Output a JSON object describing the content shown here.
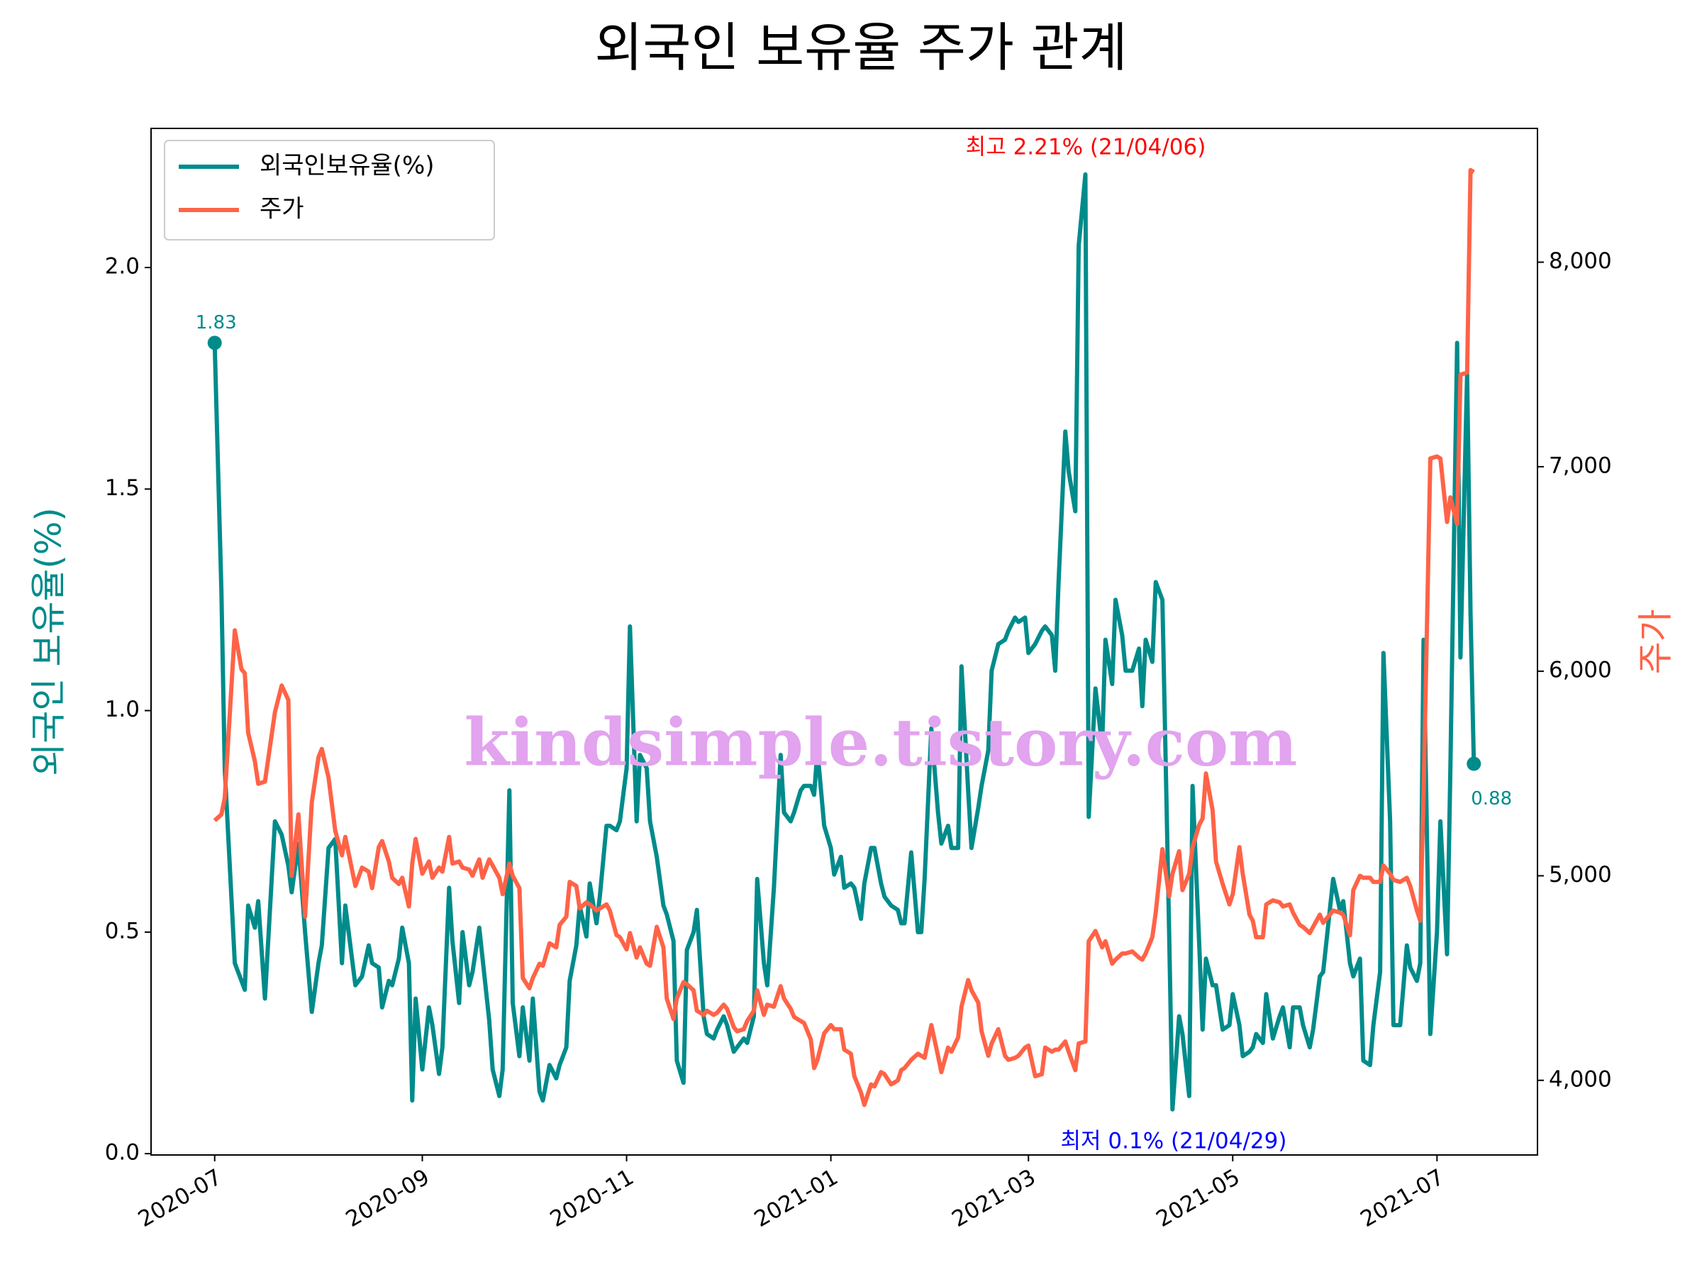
{
  "chart_data": {
    "type": "line",
    "title": "외국인 보유율 주가 관계",
    "ylabel": "외국인 보유율(%)",
    "y2label": "주가",
    "watermark": "kindsimple.tistory.com",
    "legend": "upper left",
    "annotations": [
      {
        "text": "최고 2.21% (21/04/06)",
        "color": "#ff0000"
      },
      {
        "text": "최저 0.1% (21/04/29)",
        "color": "#0000ff"
      }
    ],
    "xlim": [
      "2020-06-12",
      "2021-07-31"
    ],
    "xticks": [
      {
        "value": "2020-07-01",
        "label": "2020-07"
      },
      {
        "value": "2020-09-01",
        "label": "2020-09"
      },
      {
        "value": "2020-11-01",
        "label": "2020-11"
      },
      {
        "value": "2021-01-01",
        "label": "2021-01"
      },
      {
        "value": "2021-03-01",
        "label": "2021-03"
      },
      {
        "value": "2021-05-01",
        "label": "2021-05"
      },
      {
        "value": "2021-07-01",
        "label": "2021-07"
      }
    ],
    "ylim": [
      -0.003,
      2.314
    ],
    "yticks": [
      {
        "value": 0,
        "label": "0.0"
      },
      0.5,
      {
        "value": 1,
        "label": "1.0"
      },
      1.5,
      {
        "value": 2,
        "label": "2.0"
      }
    ],
    "y2lim": [
      3635,
      8654
    ],
    "y2ticks": [
      {
        "value": 4000,
        "label": "4,000"
      },
      {
        "value": 5000,
        "label": "5,000"
      },
      {
        "value": 6000,
        "label": "6,000"
      },
      {
        "value": 7000,
        "label": "7,000"
      },
      {
        "value": 8000,
        "label": "8,000"
      }
    ],
    "x": [
      "2020-07-01",
      "2020-07-03",
      "2020-07-04",
      "2020-07-07",
      "2020-07-09",
      "2020-07-10",
      "2020-07-11",
      "2020-07-13",
      "2020-07-14",
      "2020-07-16",
      "2020-07-19",
      "2020-07-21",
      "2020-07-23",
      "2020-07-24",
      "2020-07-26",
      "2020-07-28",
      "2020-07-30",
      "2020-08-01",
      "2020-08-02",
      "2020-08-04",
      "2020-08-06",
      "2020-08-08",
      "2020-08-09",
      "2020-08-12",
      "2020-08-14",
      "2020-08-16",
      "2020-08-17",
      "2020-08-19",
      "2020-08-20",
      "2020-08-22",
      "2020-08-23",
      "2020-08-25",
      "2020-08-26",
      "2020-08-28",
      "2020-08-29",
      "2020-08-30",
      "2020-09-01",
      "2020-09-03",
      "2020-09-04",
      "2020-09-06",
      "2020-09-07",
      "2020-09-09",
      "2020-09-10",
      "2020-09-12",
      "2020-09-13",
      "2020-09-15",
      "2020-09-16",
      "2020-09-18",
      "2020-09-19",
      "2020-09-21",
      "2020-09-22",
      "2020-09-24",
      "2020-09-25",
      "2020-09-27",
      "2020-09-28",
      "2020-09-30",
      "2020-10-01",
      "2020-10-03",
      "2020-10-04",
      "2020-10-06",
      "2020-10-07",
      "2020-10-09",
      "2020-10-11",
      "2020-10-12",
      "2020-10-14",
      "2020-10-15",
      "2020-10-17",
      "2020-10-18",
      "2020-10-20",
      "2020-10-21",
      "2020-10-23",
      "2020-10-24",
      "2020-10-26",
      "2020-10-27",
      "2020-10-29",
      "2020-10-30",
      "2020-11-01",
      "2020-11-02",
      "2020-11-04",
      "2020-11-05",
      "2020-11-07",
      "2020-11-08",
      "2020-11-10",
      "2020-11-12",
      "2020-11-13",
      "2020-11-15",
      "2020-11-16",
      "2020-11-18",
      "2020-11-19",
      "2020-11-21",
      "2020-11-22",
      "2020-11-24",
      "2020-11-25",
      "2020-11-27",
      "2020-11-28",
      "2020-11-30",
      "2020-12-01",
      "2020-12-03",
      "2020-12-04",
      "2020-12-06",
      "2020-12-07",
      "2020-12-09",
      "2020-12-10",
      "2020-12-12",
      "2020-12-13",
      "2020-12-15",
      "2020-12-17",
      "2020-12-18",
      "2020-12-20",
      "2020-12-21",
      "2020-12-23",
      "2020-12-24",
      "2020-12-26",
      "2020-12-27",
      "2020-12-28",
      "2020-12-30",
      "2021-01-01",
      "2021-01-02",
      "2021-01-04",
      "2021-01-05",
      "2021-01-07",
      "2021-01-08",
      "2021-01-10",
      "2021-01-11",
      "2021-01-13",
      "2021-01-14",
      "2021-01-16",
      "2021-01-17",
      "2021-01-19",
      "2021-01-21",
      "2021-01-22",
      "2021-01-23",
      "2021-01-25",
      "2021-01-27",
      "2021-01-28",
      "2021-01-29",
      "2021-01-31",
      "2021-02-02",
      "2021-02-03",
      "2021-02-05",
      "2021-02-06",
      "2021-02-08",
      "2021-02-09",
      "2021-02-11",
      "2021-02-12",
      "2021-02-14",
      "2021-02-15",
      "2021-02-17",
      "2021-02-18",
      "2021-02-20",
      "2021-02-22",
      "2021-02-23",
      "2021-02-25",
      "2021-02-26",
      "2021-02-28",
      "2021-03-01",
      "2021-03-03",
      "2021-03-05",
      "2021-03-06",
      "2021-03-08",
      "2021-03-09",
      "2021-03-10",
      "2021-03-12",
      "2021-03-13",
      "2021-03-15",
      "2021-03-16",
      "2021-03-18",
      "2021-03-19",
      "2021-03-21",
      "2021-03-23",
      "2021-03-24",
      "2021-03-26",
      "2021-03-27",
      "2021-03-29",
      "2021-03-30",
      "2021-04-01",
      "2021-04-03",
      "2021-04-04",
      "2021-04-05",
      "2021-04-07",
      "2021-04-08",
      "2021-04-10",
      "2021-04-12",
      "2021-04-13",
      "2021-04-15",
      "2021-04-16",
      "2021-04-18",
      "2021-04-19",
      "2021-04-21",
      "2021-04-22",
      "2021-04-23",
      "2021-04-25",
      "2021-04-26",
      "2021-04-28",
      "2021-04-30",
      "2021-05-01",
      "2021-05-03",
      "2021-05-04",
      "2021-05-06",
      "2021-05-07",
      "2021-05-08",
      "2021-05-10",
      "2021-05-11",
      "2021-05-13",
      "2021-05-15",
      "2021-05-16",
      "2021-05-18",
      "2021-05-19",
      "2021-05-21",
      "2021-05-22",
      "2021-05-24",
      "2021-05-25",
      "2021-05-27",
      "2021-05-28",
      "2021-05-30",
      "2021-05-31",
      "2021-06-02",
      "2021-06-03",
      "2021-06-05",
      "2021-06-06",
      "2021-06-08",
      "2021-06-09",
      "2021-06-11",
      "2021-06-12",
      "2021-06-14",
      "2021-06-15",
      "2021-06-17",
      "2021-06-18",
      "2021-06-20",
      "2021-06-22",
      "2021-06-23",
      "2021-06-25",
      "2021-06-26",
      "2021-06-27",
      "2021-06-29",
      "2021-07-01",
      "2021-07-02",
      "2021-07-04",
      "2021-07-05",
      "2021-07-07",
      "2021-07-08",
      "2021-07-10",
      "2021-07-11",
      "2021-07-12"
    ],
    "series": [
      {
        "name": "외국인보유율(%)",
        "color": "#008b8b",
        "values": [
          1.83,
          1.27,
          0.87,
          0.43,
          0.39,
          0.37,
          0.56,
          0.51,
          0.57,
          0.35,
          0.75,
          0.72,
          0.65,
          0.59,
          0.7,
          0.5,
          0.32,
          0.43,
          0.47,
          0.69,
          0.71,
          0.43,
          0.56,
          0.38,
          0.4,
          0.47,
          0.43,
          0.42,
          0.33,
          0.39,
          0.38,
          0.44,
          0.51,
          0.43,
          0.12,
          0.35,
          0.19,
          0.33,
          0.29,
          0.18,
          0.24,
          0.6,
          0.48,
          0.34,
          0.5,
          0.38,
          0.41,
          0.51,
          0.44,
          0.3,
          0.19,
          0.13,
          0.19,
          0.82,
          0.34,
          0.22,
          0.33,
          0.21,
          0.35,
          0.14,
          0.12,
          0.2,
          0.17,
          0.2,
          0.24,
          0.39,
          0.47,
          0.56,
          0.49,
          0.61,
          0.52,
          0.58,
          0.74,
          0.74,
          0.73,
          0.75,
          0.87,
          1.19,
          0.75,
          0.9,
          0.87,
          0.75,
          0.67,
          0.56,
          0.54,
          0.48,
          0.21,
          0.16,
          0.46,
          0.5,
          0.55,
          0.31,
          0.27,
          0.26,
          0.28,
          0.31,
          0.29,
          0.23,
          0.24,
          0.26,
          0.25,
          0.31,
          0.62,
          0.43,
          0.38,
          0.6,
          0.9,
          0.77,
          0.75,
          0.77,
          0.82,
          0.83,
          0.83,
          0.81,
          0.91,
          0.74,
          0.69,
          0.63,
          0.67,
          0.6,
          0.61,
          0.6,
          0.53,
          0.61,
          0.69,
          0.69,
          0.61,
          0.58,
          0.56,
          0.55,
          0.52,
          0.52,
          0.68,
          0.5,
          0.5,
          0.62,
          0.96,
          0.77,
          0.7,
          0.74,
          0.69,
          0.69,
          1.1,
          0.82,
          0.69,
          0.78,
          0.83,
          0.91,
          1.09,
          1.15,
          1.16,
          1.18,
          1.21,
          1.2,
          1.21,
          1.13,
          1.15,
          1.18,
          1.19,
          1.17,
          1.09,
          1.29,
          1.63,
          1.54,
          1.45,
          2.05,
          2.21,
          0.76,
          1.05,
          0.92,
          1.16,
          1.06,
          1.25,
          1.17,
          1.09,
          1.09,
          1.14,
          1.01,
          1.16,
          1.11,
          1.29,
          1.25,
          0.5,
          0.1,
          0.31,
          0.27,
          0.13,
          0.83,
          0.47,
          0.28,
          0.44,
          0.38,
          0.38,
          0.28,
          0.29,
          0.36,
          0.29,
          0.22,
          0.23,
          0.24,
          0.27,
          0.25,
          0.36,
          0.26,
          0.31,
          0.33,
          0.24,
          0.33,
          0.33,
          0.29,
          0.24,
          0.28,
          0.4,
          0.41,
          0.55,
          0.62,
          0.55,
          0.57,
          0.43,
          0.4,
          0.44,
          0.21,
          0.2,
          0.29,
          0.41,
          1.13,
          0.75,
          0.29,
          0.29,
          0.47,
          0.42,
          0.39,
          0.43,
          1.16,
          0.27,
          0.5,
          0.75,
          0.45,
          0.87,
          1.83,
          1.12,
          1.76,
          1.22,
          0.88
        ]
      },
      {
        "name": "주가",
        "color": "#ff6347",
        "axis": "y2",
        "values": [
          5270,
          5300,
          5380,
          6200,
          6010,
          5990,
          5700,
          5560,
          5450,
          5460,
          5800,
          5930,
          5860,
          5000,
          5300,
          4800,
          5360,
          5580,
          5620,
          5480,
          5220,
          5100,
          5190,
          4950,
          5040,
          5020,
          4940,
          5140,
          5170,
          5070,
          4990,
          4960,
          4990,
          4850,
          5060,
          5180,
          5010,
          5070,
          4990,
          5040,
          5020,
          5190,
          5060,
          5070,
          5040,
          5030,
          5000,
          5080,
          4990,
          5080,
          5050,
          4990,
          4910,
          5060,
          5000,
          4940,
          4500,
          4450,
          4500,
          4570,
          4560,
          4670,
          4650,
          4760,
          4800,
          4970,
          4950,
          4840,
          4870,
          4860,
          4830,
          4840,
          4860,
          4830,
          4710,
          4700,
          4640,
          4720,
          4600,
          4650,
          4570,
          4560,
          4750,
          4650,
          4400,
          4300,
          4400,
          4480,
          4470,
          4440,
          4340,
          4320,
          4340,
          4320,
          4330,
          4370,
          4350,
          4260,
          4240,
          4250,
          4290,
          4340,
          4440,
          4320,
          4370,
          4360,
          4460,
          4400,
          4350,
          4310,
          4290,
          4280,
          4200,
          4060,
          4100,
          4230,
          4270,
          4250,
          4250,
          4150,
          4130,
          4020,
          3940,
          3880,
          3980,
          3970,
          4040,
          4030,
          3980,
          4000,
          4050,
          4060,
          4100,
          4130,
          4120,
          4110,
          4270,
          4120,
          4040,
          4160,
          4140,
          4210,
          4360,
          4490,
          4440,
          4380,
          4240,
          4120,
          4180,
          4250,
          4120,
          4100,
          4110,
          4120,
          4160,
          4170,
          4020,
          4030,
          4160,
          4140,
          4150,
          4150,
          4190,
          4140,
          4050,
          4180,
          4190,
          4680,
          4730,
          4650,
          4680,
          4570,
          4590,
          4620,
          4620,
          4630,
          4600,
          4590,
          4620,
          4700,
          4820,
          5130,
          4900,
          5010,
          5120,
          4930,
          5010,
          5140,
          5250,
          5280,
          5500,
          5320,
          5070,
          4960,
          4860,
          4910,
          5140,
          5010,
          4810,
          4780,
          4700,
          4700,
          4860,
          4880,
          4870,
          4850,
          4860,
          4820,
          4760,
          4750,
          4720,
          4750,
          4810,
          4770,
          4810,
          4830,
          4820,
          4810,
          4710,
          4930,
          5000,
          4990,
          4990,
          4970,
          4970,
          5050,
          5010,
          4980,
          4970,
          4990,
          4950,
          4830,
          4780,
          5400,
          7040,
          7050,
          7040,
          6730,
          6850,
          6720,
          7450,
          7460,
          8450,
          8440
        ]
      }
    ]
  }
}
